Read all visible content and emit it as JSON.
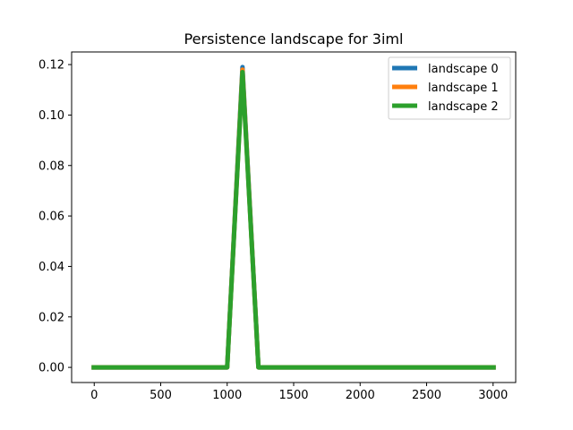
{
  "chart_data": {
    "type": "line",
    "title": "Persistence landscape for 3iml",
    "xlabel": "",
    "ylabel": "",
    "xlim": [
      -170,
      3170
    ],
    "ylim": [
      -0.006,
      0.125
    ],
    "x_ticks": [
      0,
      500,
      1000,
      1500,
      2000,
      2500,
      3000
    ],
    "x_tick_labels": [
      "0",
      "500",
      "1000",
      "1500",
      "2000",
      "2500",
      "3000"
    ],
    "y_ticks": [
      0.0,
      0.02,
      0.04,
      0.06,
      0.08,
      0.1,
      0.12
    ],
    "y_tick_labels": [
      "0.00",
      "0.02",
      "0.04",
      "0.06",
      "0.08",
      "0.10",
      "0.12"
    ],
    "grid": false,
    "legend_position": "top-right",
    "series": [
      {
        "name": "landscape 0",
        "color": "#1f77b4",
        "x": [
          -20,
          1000,
          1115,
          1235,
          3020
        ],
        "y": [
          0.0,
          0.0,
          0.119,
          0.0,
          0.0
        ]
      },
      {
        "name": "landscape 1",
        "color": "#ff7f0e",
        "x": [
          -20,
          1000,
          1115,
          1235,
          3020
        ],
        "y": [
          0.0,
          0.0,
          0.118,
          0.0,
          0.0
        ]
      },
      {
        "name": "landscape 2",
        "color": "#2ca02c",
        "x": [
          -20,
          1000,
          1115,
          1235,
          3020
        ],
        "y": [
          0.0,
          0.0,
          0.117,
          0.0,
          0.0
        ]
      }
    ]
  }
}
